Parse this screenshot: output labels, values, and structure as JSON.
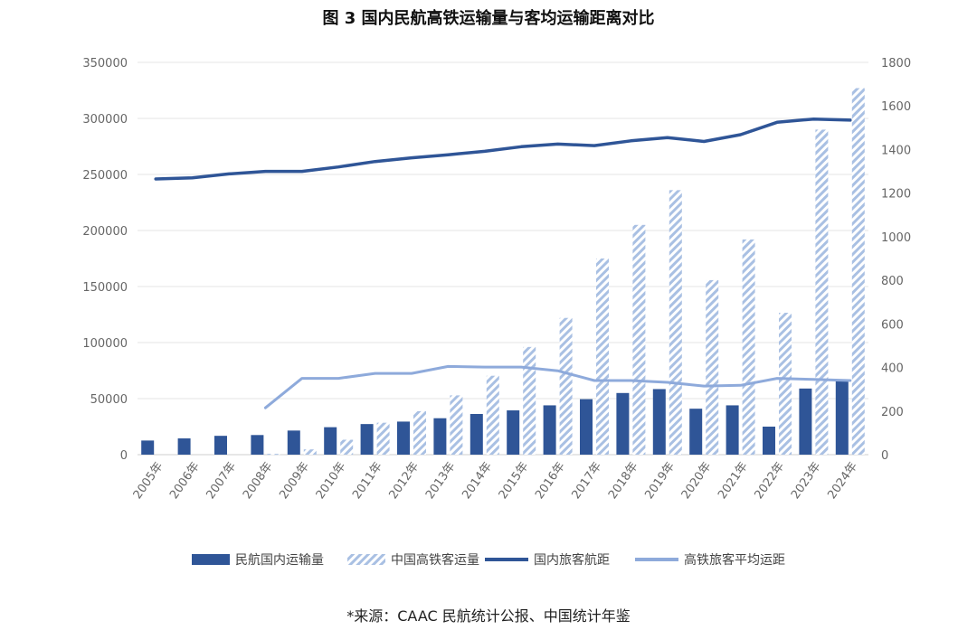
{
  "chart_data": {
    "type": "bar",
    "title": "图 3 国内民航高铁运输量与客均运输距离对比",
    "categories": [
      "2005年",
      "2006年",
      "2007年",
      "2008年",
      "2009年",
      "2010年",
      "2011年",
      "2012年",
      "2013年",
      "2014年",
      "2015年",
      "2016年",
      "2017年",
      "2018年",
      "2019年",
      "2020年",
      "2021年",
      "2022年",
      "2023年",
      "2024年"
    ],
    "left_axis": {
      "ylim": [
        0,
        350000
      ],
      "ticks": [
        "0",
        "50000",
        "100000",
        "150000",
        "200000",
        "250000",
        "300000",
        "350000"
      ]
    },
    "right_axis": {
      "ylim": [
        0,
        1800
      ],
      "ticks": [
        "0",
        "200",
        "400",
        "600",
        "800",
        "1000",
        "1200",
        "1400",
        "1600",
        "1800"
      ]
    },
    "series": [
      {
        "name": "民航国内运输量",
        "kind": "bar",
        "axis": "left",
        "color": "#2F5597",
        "values": [
          12600,
          14500,
          16800,
          17500,
          21500,
          24500,
          27300,
          29500,
          32500,
          36300,
          39500,
          44000,
          49500,
          55000,
          58500,
          41000,
          44000,
          25000,
          59000,
          67000
        ]
      },
      {
        "name": "中国高铁客运量",
        "kind": "hatched-bar",
        "axis": "left",
        "color": "#A9C0E3",
        "values": [
          null,
          null,
          null,
          700,
          4700,
          13300,
          28500,
          38800,
          52900,
          70400,
          96100,
          122000,
          175000,
          205000,
          236000,
          155700,
          192000,
          126600,
          290000,
          327000
        ]
      },
      {
        "name": "国内旅客航距",
        "kind": "line",
        "axis": "right",
        "color": "#2F5597",
        "values": [
          1265,
          1270,
          1288,
          1300,
          1300,
          1320,
          1345,
          1362,
          1376,
          1392,
          1413,
          1425,
          1418,
          1440,
          1455,
          1437,
          1468,
          1525,
          1540,
          1535
        ]
      },
      {
        "name": "高铁旅客平均运距",
        "kind": "line",
        "axis": "right",
        "color": "#8EAADB",
        "values": [
          null,
          null,
          null,
          215,
          350,
          350,
          373,
          373,
          405,
          402,
          402,
          385,
          340,
          340,
          332,
          315,
          318,
          350,
          345,
          340
        ]
      }
    ]
  },
  "source": "*来源：CAAC 民航统计公报、中国统计年鉴"
}
